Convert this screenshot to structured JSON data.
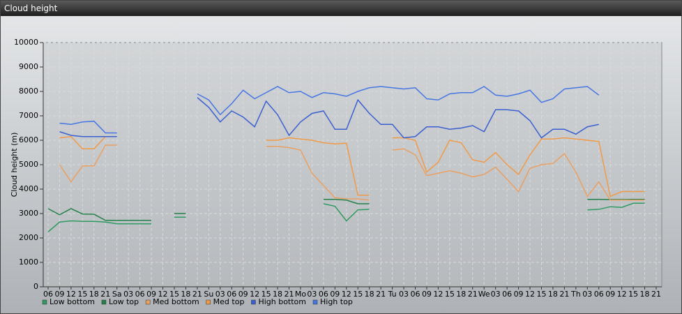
{
  "chart_data": {
    "type": "line",
    "title": "Cloud height",
    "y_label": "Cloud height (m)",
    "categories": [
      "06",
      "09",
      "12",
      "15",
      "18",
      "21",
      "Sa",
      "03",
      "06",
      "09",
      "12",
      "15",
      "18",
      "21",
      "Su",
      "03",
      "06",
      "09",
      "12",
      "15",
      "18",
      "21",
      "Mo",
      "03",
      "06",
      "09",
      "12",
      "15",
      "18",
      "21",
      "Tu",
      "03",
      "06",
      "09",
      "12",
      "15",
      "18",
      "21",
      "We",
      "03",
      "06",
      "09",
      "12",
      "15",
      "18",
      "21",
      "Th",
      "03",
      "06",
      "09",
      "12",
      "15",
      "18",
      "21"
    ],
    "ylim": [
      0,
      10000
    ],
    "yticks": [
      0,
      1000,
      2000,
      3000,
      4000,
      5000,
      6000,
      7000,
      8000,
      9000,
      10000
    ],
    "grid": true,
    "series": [
      {
        "name": "Low bottom",
        "color": "#2f9a62",
        "values": [
          2250,
          2650,
          2700,
          2680,
          2680,
          2650,
          2580,
          2580,
          2580,
          2580,
          null,
          2850,
          2850,
          null,
          null,
          null,
          null,
          null,
          null,
          null,
          null,
          null,
          null,
          null,
          3400,
          3300,
          2700,
          3150,
          3170,
          null,
          null,
          null,
          null,
          null,
          null,
          null,
          null,
          null,
          null,
          null,
          null,
          null,
          null,
          null,
          null,
          null,
          null,
          3150,
          3170,
          3280,
          3250,
          3420,
          3420,
          null
        ]
      },
      {
        "name": "Low top",
        "color": "#23804a",
        "values": [
          3200,
          2950,
          3200,
          2980,
          2970,
          2720,
          2720,
          2720,
          2720,
          2720,
          null,
          3000,
          3000,
          null,
          null,
          null,
          null,
          null,
          null,
          null,
          null,
          null,
          null,
          null,
          3580,
          3580,
          3550,
          3400,
          3400,
          null,
          null,
          null,
          null,
          null,
          null,
          null,
          null,
          null,
          null,
          null,
          null,
          null,
          null,
          null,
          null,
          null,
          null,
          3580,
          3580,
          3570,
          3570,
          3580,
          3580,
          null
        ]
      },
      {
        "name": "Med bottom",
        "color": "#e9a062",
        "values": [
          null,
          5000,
          4300,
          4950,
          4950,
          5800,
          5800,
          null,
          null,
          null,
          null,
          null,
          null,
          null,
          null,
          null,
          null,
          null,
          null,
          5750,
          5750,
          5700,
          5600,
          4650,
          4150,
          3650,
          3600,
          3600,
          3550,
          null,
          5600,
          5650,
          5400,
          4550,
          4650,
          4750,
          4650,
          4500,
          4600,
          4900,
          4400,
          3900,
          4850,
          5000,
          5050,
          5450,
          4700,
          3700,
          4300,
          3550,
          3550,
          3550,
          3550,
          null
        ]
      },
      {
        "name": "Med top",
        "color": "#f09a48",
        "values": [
          null,
          6100,
          6150,
          5650,
          5650,
          6150,
          6150,
          null,
          null,
          null,
          null,
          null,
          null,
          null,
          null,
          null,
          null,
          null,
          null,
          6000,
          6000,
          6100,
          6050,
          6000,
          5900,
          5850,
          5880,
          3750,
          3750,
          null,
          6100,
          6100,
          6000,
          4700,
          5100,
          6000,
          5900,
          5200,
          5100,
          5500,
          5000,
          4600,
          5400,
          6050,
          6050,
          6100,
          6050,
          6000,
          5950,
          3700,
          3900,
          3900,
          3900,
          null
        ]
      },
      {
        "name": "High bottom",
        "color": "#3a5fcf",
        "values": [
          null,
          6350,
          6200,
          6150,
          6150,
          6150,
          6150,
          null,
          null,
          null,
          null,
          null,
          null,
          7750,
          7350,
          6750,
          7200,
          6950,
          6550,
          7600,
          7050,
          6200,
          6750,
          7100,
          7200,
          6450,
          6450,
          7650,
          7100,
          6650,
          6650,
          6100,
          6150,
          6550,
          6550,
          6450,
          6500,
          6600,
          6350,
          7250,
          7250,
          7200,
          6800,
          6100,
          6450,
          6450,
          6250,
          6550,
          6650,
          null,
          null,
          null,
          null,
          null
        ]
      },
      {
        "name": "High top",
        "color": "#4676e2",
        "values": [
          null,
          6700,
          6650,
          6750,
          6780,
          6300,
          6300,
          null,
          null,
          null,
          null,
          null,
          null,
          7900,
          7650,
          7050,
          7500,
          8050,
          7700,
          7950,
          8200,
          7950,
          8000,
          7750,
          7950,
          7900,
          7800,
          8000,
          8150,
          8200,
          8150,
          8100,
          8150,
          7700,
          7650,
          7900,
          7950,
          7950,
          8200,
          7850,
          7800,
          7900,
          8050,
          7550,
          7700,
          8100,
          8150,
          8200,
          7850,
          null,
          null,
          null,
          null,
          null
        ]
      }
    ]
  }
}
